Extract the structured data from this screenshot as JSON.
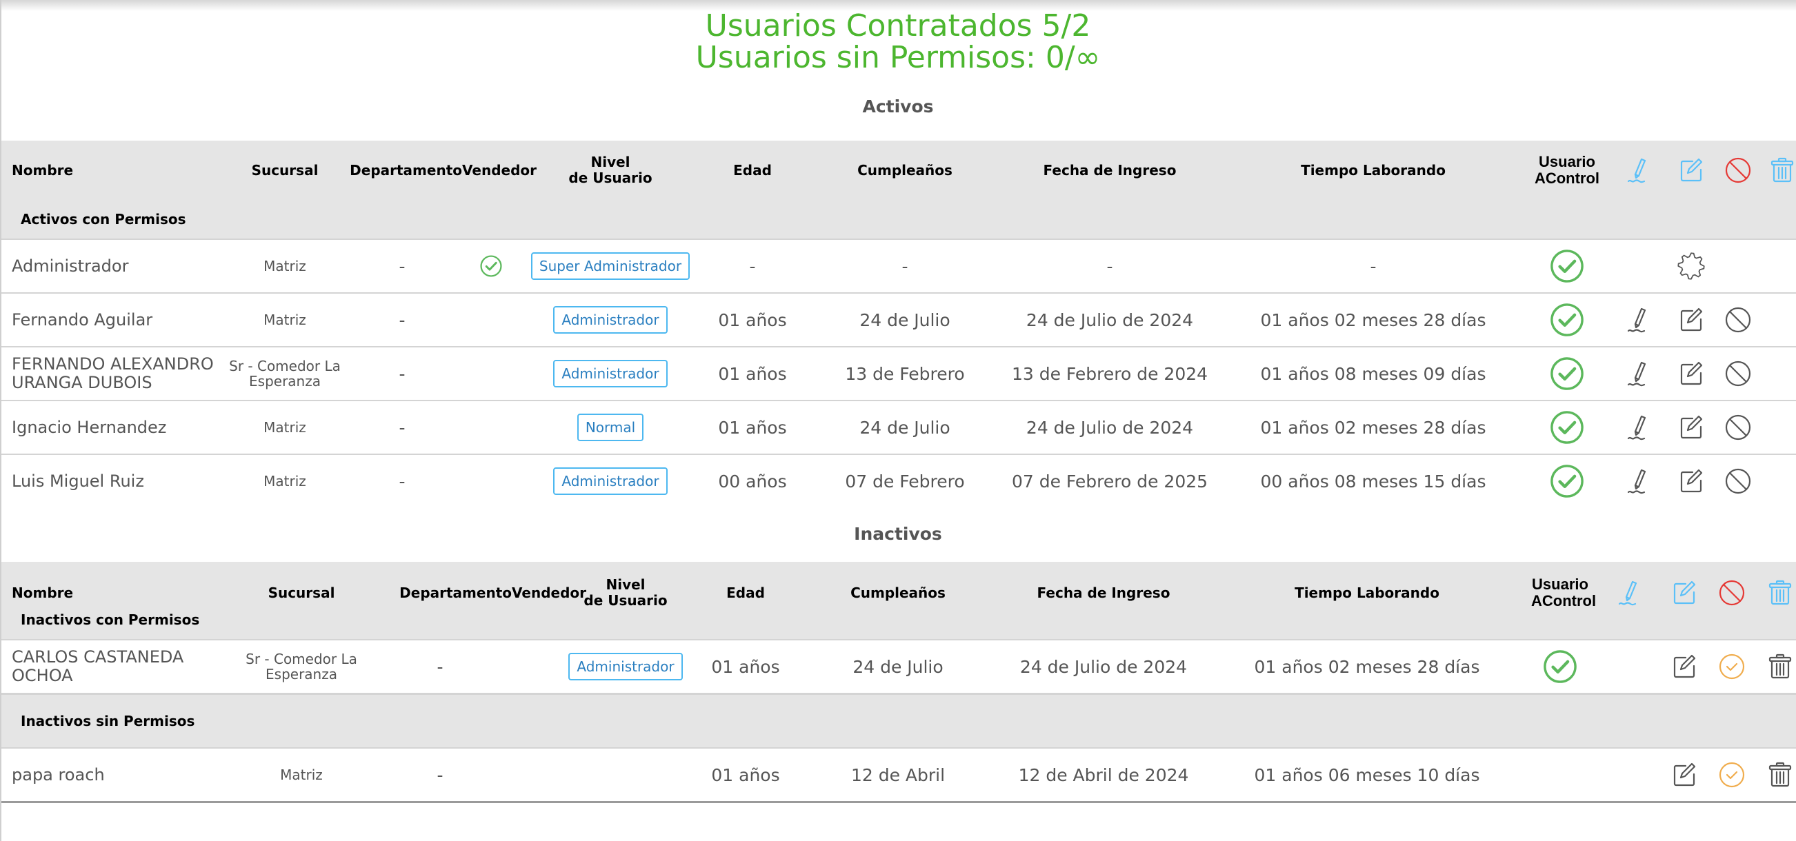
{
  "header": {
    "contracted": "Usuarios Contratados 5/2",
    "no_permissions": "Usuarios sin Permisos: 0/∞"
  },
  "colors": {
    "title_green": "#4cb62f",
    "check_green": "#5cb85c",
    "header_icon_blue": "#5bc0f8",
    "ban_red": "#e53935",
    "reactivate_orange": "#f0ad4e",
    "badge_blue": "#4db8f0"
  },
  "columns": {
    "name": "Nombre",
    "branch": "Sucursal",
    "department": "Departamento",
    "vendor": "Vendedor",
    "level": "Nivel\nde Usuario",
    "age": "Edad",
    "birthday": "Cumpleaños",
    "hire_date": "Fecha de Ingreso",
    "tenure": "Tiempo Laborando",
    "acontrol": "Usuario\nAControl",
    "header_icons": [
      "signature-icon",
      "edit-icon",
      "ban-icon",
      "trash-icon"
    ]
  },
  "sections": [
    {
      "title": "Activos",
      "groups": [
        {
          "title": "Activos con Permisos",
          "rows": [
            {
              "name": "Administrador",
              "branch": "Matriz",
              "department": "-",
              "vendor": true,
              "level": "Super Administrador",
              "age": "-",
              "birthday": "-",
              "hire_date": "-",
              "tenure": "-",
              "acontrol": true,
              "actions": [
                null,
                "gear-icon",
                null,
                null
              ]
            },
            {
              "name": "Fernando Aguilar",
              "branch": "Matriz",
              "department": "-",
              "vendor": false,
              "level": "Administrador",
              "age": "01 años",
              "birthday": "24 de Julio",
              "hire_date": "24 de Julio de 2024",
              "tenure": "01 años 02 meses 28 días",
              "acontrol": true,
              "actions": [
                "signature-icon",
                "edit-icon",
                "ban-icon",
                null
              ]
            },
            {
              "name": "FERNANDO ALEXANDRO URANGA DUBOIS",
              "branch": "Sr - Comedor La Esperanza",
              "department": "-",
              "vendor": false,
              "level": "Administrador",
              "age": "01 años",
              "birthday": "13 de Febrero",
              "hire_date": "13 de Febrero de 2024",
              "tenure": "01 años 08 meses 09 días",
              "acontrol": true,
              "actions": [
                "signature-icon",
                "edit-icon",
                "ban-icon",
                null
              ]
            },
            {
              "name": "Ignacio Hernandez",
              "branch": "Matriz",
              "department": "-",
              "vendor": false,
              "level": "Normal",
              "age": "01 años",
              "birthday": "24 de Julio",
              "hire_date": "24 de Julio de 2024",
              "tenure": "01 años 02 meses 28 días",
              "acontrol": true,
              "actions": [
                "signature-icon",
                "edit-icon",
                "ban-icon",
                null
              ]
            },
            {
              "name": "Luis Miguel Ruiz",
              "branch": "Matriz",
              "department": "-",
              "vendor": false,
              "level": "Administrador",
              "age": "00 años",
              "birthday": "07 de Febrero",
              "hire_date": "07 de Febrero de 2025",
              "tenure": "00 años 08 meses 15 días",
              "acontrol": true,
              "actions": [
                "signature-icon",
                "edit-icon",
                "ban-icon",
                null
              ]
            }
          ]
        }
      ]
    },
    {
      "title": "Inactivos",
      "groups": [
        {
          "title": "Inactivos con Permisos",
          "rows": [
            {
              "name": "CARLOS CASTANEDA OCHOA",
              "branch": "Sr - Comedor La Esperanza",
              "department": "-",
              "vendor": false,
              "level": "Administrador",
              "age": "01 años",
              "birthday": "24 de Julio",
              "hire_date": "24 de Julio de 2024",
              "tenure": "01 años 02 meses 28 días",
              "acontrol": true,
              "actions": [
                null,
                "edit-icon",
                "reactivate-check-icon",
                "trash-icon"
              ]
            }
          ]
        },
        {
          "title": "Inactivos sin Permisos",
          "rows": [
            {
              "name": "papa roach",
              "branch": "Matriz",
              "department": "-",
              "vendor": false,
              "level": "",
              "age": "01 años",
              "birthday": "12 de Abril",
              "hire_date": "12 de Abril de 2024",
              "tenure": "01 años 06 meses 10 días",
              "acontrol": false,
              "actions": [
                null,
                "edit-icon",
                "reactivate-check-icon",
                "trash-icon"
              ]
            }
          ]
        }
      ]
    }
  ]
}
